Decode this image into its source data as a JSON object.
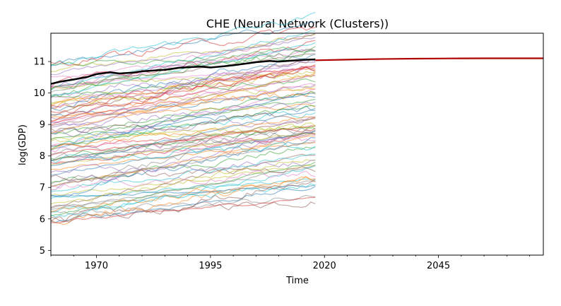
{
  "chart_data": {
    "type": "line",
    "title": "CHE (Neural Network (Clusters))",
    "xlabel": "Time",
    "ylabel": "log(GDP)",
    "xlim": [
      1960,
      2068
    ],
    "ylim": [
      4.85,
      11.9
    ],
    "x_ticks": [
      1970,
      1995,
      2020,
      2045
    ],
    "y_ticks": [
      5,
      6,
      7,
      8,
      9,
      10,
      11
    ],
    "grid": false,
    "legend": "none",
    "main_series": {
      "color": "#000000",
      "x": [
        1960,
        1962,
        1965,
        1968,
        1970,
        1973,
        1975,
        1978,
        1980,
        1983,
        1985,
        1988,
        1990,
        1993,
        1995,
        1998,
        2000,
        2003,
        2005,
        2008,
        2010,
        2013,
        2015,
        2018
      ],
      "y": [
        10.29,
        10.36,
        10.43,
        10.51,
        10.6,
        10.66,
        10.62,
        10.65,
        10.69,
        10.72,
        10.74,
        10.8,
        10.82,
        10.84,
        10.81,
        10.85,
        10.88,
        10.94,
        10.98,
        11.02,
        11.0,
        11.03,
        11.05,
        11.07
      ]
    },
    "forecast_series": {
      "color": "#b00000",
      "x": [
        2018,
        2025,
        2030,
        2035,
        2040,
        2045,
        2050,
        2055,
        2060,
        2068
      ],
      "y": [
        11.04,
        11.06,
        11.075,
        11.085,
        11.092,
        11.097,
        11.1,
        11.102,
        11.103,
        11.104
      ]
    },
    "background_series_count": 95,
    "background_series_range": {
      "x": [
        1960,
        2018
      ],
      "y_start": [
        5.8,
        11.0
      ],
      "y_end_growth": [
        0.3,
        1.9
      ]
    },
    "background_palette": [
      "#1f77b4",
      "#ff7f0e",
      "#2ca02c",
      "#d62728",
      "#9467bd",
      "#8c564b",
      "#e377c2",
      "#7f7f7f",
      "#bcbd22",
      "#17becf"
    ]
  }
}
